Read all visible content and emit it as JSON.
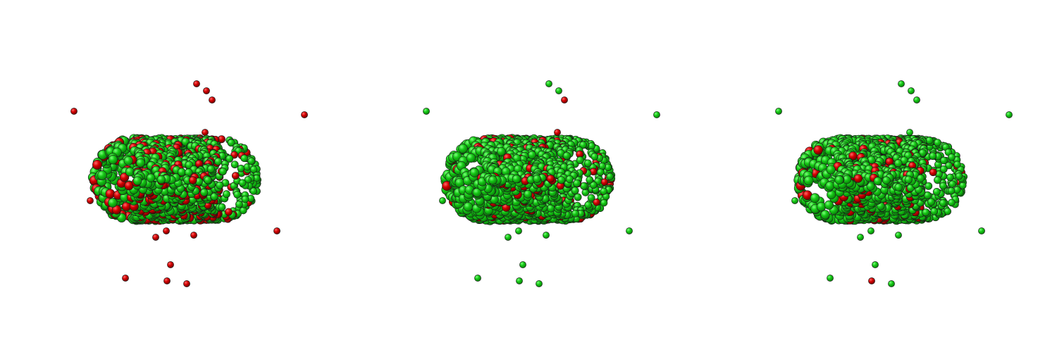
{
  "colors": {
    "background": "#ffffff",
    "green_particle": "#15c815",
    "green_particle_dark": "#0a7d0a",
    "red_particle": "#d40000",
    "red_particle_dark": "#6b0000",
    "outline": "#1a1a1a"
  },
  "panels": [
    {
      "id": "panel-1",
      "red_fraction": 0.22,
      "outlier_state": "all-red"
    },
    {
      "id": "panel-2",
      "red_fraction": 0.12,
      "outlier_state": "mostly-green"
    },
    {
      "id": "panel-3",
      "red_fraction": 0.1,
      "outlier_state": "mostly-green"
    }
  ]
}
